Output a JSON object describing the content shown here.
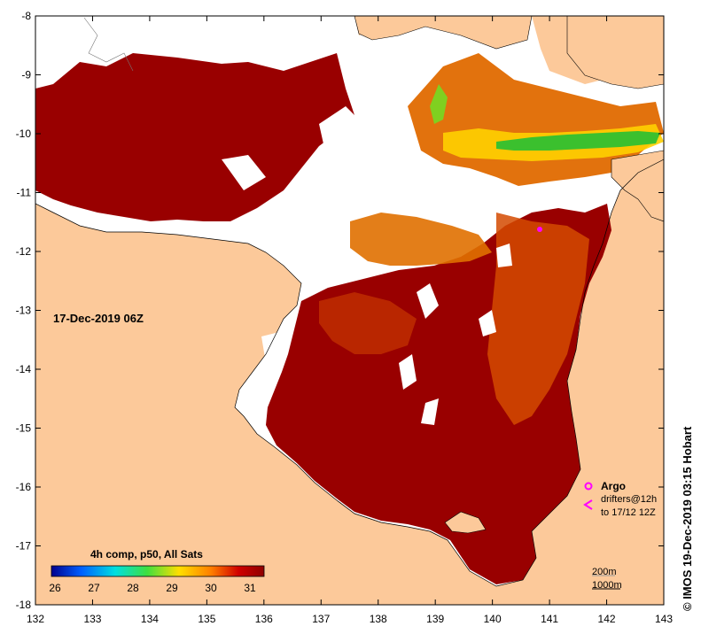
{
  "map": {
    "date_label": "17-Dec-2019 06Z",
    "x_ticks": [
      "132",
      "133",
      "134",
      "135",
      "136",
      "137",
      "138",
      "139",
      "140",
      "141",
      "142",
      "143"
    ],
    "y_ticks": [
      "-8",
      "-9",
      "-10",
      "-11",
      "-12",
      "-13",
      "-14",
      "-15",
      "-16",
      "-17",
      "-18"
    ],
    "land_color": "#fcc99a",
    "nodata_color": "#ffffff"
  },
  "colorbar": {
    "title": "4h comp, p50, All Sats",
    "ticks": [
      "26",
      "27",
      "28",
      "29",
      "30",
      "31"
    ],
    "colors": [
      "#00008f",
      "#005fff",
      "#00dfe0",
      "#3fdf3f",
      "#ffdf00",
      "#ff7f00",
      "#d00000",
      "#8f0000"
    ]
  },
  "legend": {
    "argo_label": "Argo",
    "drifters_label": "drifters@12h",
    "drifters_range": "to 17/12 12Z",
    "argo_color": "#ff00ff"
  },
  "contours": {
    "line1": "200m",
    "line2": "1000m"
  },
  "credit": "© IMOS 19-Dec-2019 03:15 Hobart"
}
